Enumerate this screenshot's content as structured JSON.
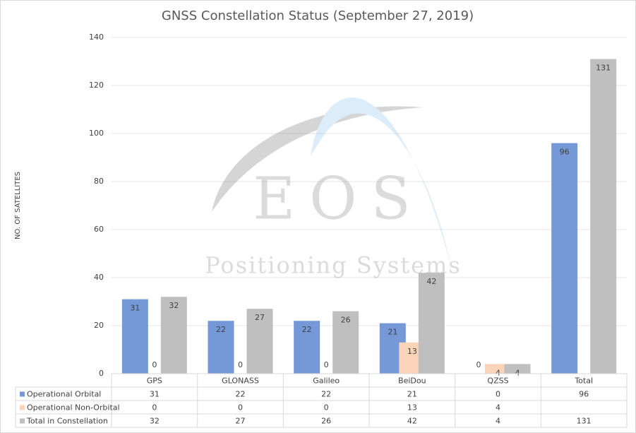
{
  "chart_data": {
    "type": "bar",
    "title": "GNSS Constellation Status (September 27, 2019)",
    "y_label": "NO. OF SATELLITES",
    "watermark": {
      "logo": "EOS",
      "text": "Positioning Systems"
    },
    "categories": [
      "GPS",
      "GLONASS",
      "Galileo",
      "BeiDou",
      "QZSS",
      "Total"
    ],
    "series": [
      {
        "name": "Operational Orbital",
        "color": "#7499d6",
        "values": [
          31,
          22,
          22,
          21,
          0,
          96
        ]
      },
      {
        "name": "Operational Non-Orbital",
        "color": "#fbd3b9",
        "values": [
          0,
          0,
          0,
          13,
          4,
          null
        ]
      },
      {
        "name": "Total in Constellation",
        "color": "#bfbfbf",
        "values": [
          32,
          27,
          26,
          42,
          4,
          131
        ]
      }
    ],
    "ylim": [
      0,
      140
    ],
    "yticks": [
      0,
      20,
      40,
      60,
      80,
      100,
      120,
      140
    ],
    "grid": true
  }
}
